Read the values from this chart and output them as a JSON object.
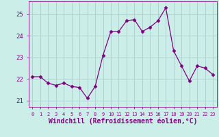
{
  "x": [
    0,
    1,
    2,
    3,
    4,
    5,
    6,
    7,
    8,
    9,
    10,
    11,
    12,
    13,
    14,
    15,
    16,
    17,
    18,
    19,
    20,
    21,
    22,
    23
  ],
  "y": [
    22.1,
    22.1,
    21.8,
    21.7,
    21.8,
    21.65,
    21.6,
    21.1,
    21.65,
    23.1,
    24.2,
    24.2,
    24.7,
    24.75,
    24.2,
    24.4,
    24.7,
    25.3,
    23.3,
    22.6,
    21.9,
    22.6,
    22.5,
    22.2
  ],
  "line_color": "#800080",
  "marker": "D",
  "marker_size": 2.5,
  "bg_color": "#cceee8",
  "grid_color": "#aacccc",
  "xlabel": "Windchill (Refroidissement éolien,°C)",
  "xlabel_fontsize": 7,
  "tick_color": "#800080",
  "label_color": "#800080",
  "ylim": [
    20.7,
    25.6
  ],
  "yticks": [
    21,
    22,
    23,
    24,
    25
  ],
  "xticks": [
    0,
    1,
    2,
    3,
    4,
    5,
    6,
    7,
    8,
    9,
    10,
    11,
    12,
    13,
    14,
    15,
    16,
    17,
    18,
    19,
    20,
    21,
    22,
    23
  ]
}
